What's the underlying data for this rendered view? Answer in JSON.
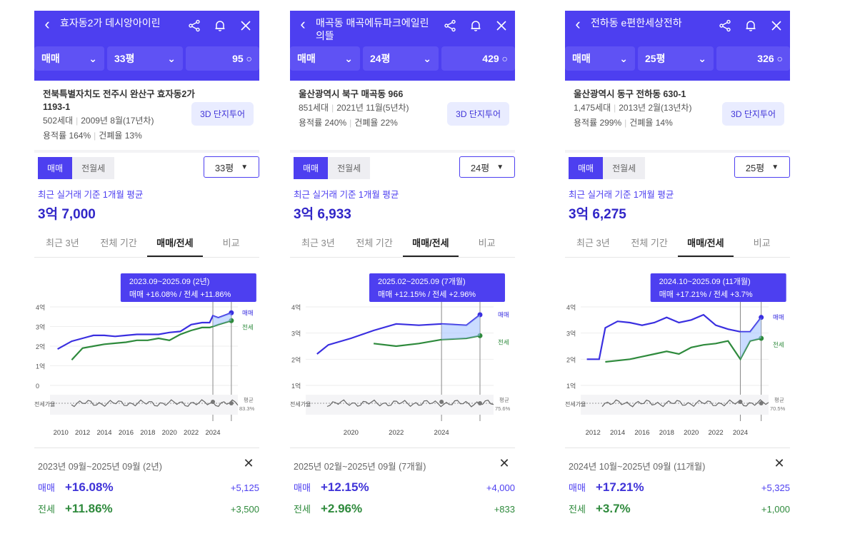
{
  "panels": [
    {
      "title": "효자동2가 데시앙아이린",
      "deal_type": "매매",
      "size": "33평",
      "count": "95",
      "address": "전북특별자치도 전주시 완산구 효자동2가 1193-1",
      "households": "502세대",
      "built": "2009년 8월(17년차)",
      "far": "용적률 164%",
      "bcr": "건폐율 13%",
      "tour_label": "3D 단지투어",
      "seg": [
        "매매",
        "전월세"
      ],
      "size_select": "33평",
      "avg_label": "최근 실거래 기준 1개월 평균",
      "avg_value": "3억 7,000",
      "tabs": [
        "최근 3년",
        "전체 기간",
        "매매/전세",
        "비교"
      ],
      "period_tip": "2023.09~2025.09 (2년)",
      "change_tip": "매매 +16.08%  /  전세 +11.86%",
      "legend_sale": "매매",
      "legend_lease": "전세",
      "ratio_label": "전세가율",
      "ratio_avg_label": "평균",
      "ratio_avg": "83.3%",
      "yticks": [
        "4억",
        "3억",
        "2억",
        "1억",
        "0"
      ],
      "xticks": [
        "2010",
        "2012",
        "2014",
        "2016",
        "2018",
        "2020",
        "2022",
        "2024"
      ],
      "summary_title": "2023년 09월~2025년 09월 (2년)",
      "sale_label": "매매",
      "sale_pct": "+16.08%",
      "sale_amt": "+5,125",
      "lease_label": "전세",
      "lease_pct": "+11.86%",
      "lease_amt": "+3,500"
    },
    {
      "title": "매곡동 매곡에듀파크에일린의뜰",
      "deal_type": "매매",
      "size": "24평",
      "count": "429",
      "address": "울산광역시 북구 매곡동 966",
      "households": "851세대",
      "built": "2021년 11월(5년차)",
      "far": "용적률 240%",
      "bcr": "건폐율 22%",
      "tour_label": "3D 단지투어",
      "seg": [
        "매매",
        "전월세"
      ],
      "size_select": "24평",
      "avg_label": "최근 실거래 기준 1개월 평균",
      "avg_value": "3억 6,933",
      "tabs": [
        "최근 3년",
        "전체 기간",
        "매매/전세",
        "비교"
      ],
      "period_tip": "2025.02~2025.09 (7개월)",
      "change_tip": "매매 +12.15%  /  전세 +2.96%",
      "legend_sale": "매매",
      "legend_lease": "전세",
      "ratio_label": "전세가율",
      "ratio_avg_label": "평균",
      "ratio_avg": "75.6%",
      "yticks": [
        "4억",
        "3억",
        "2억",
        "1억"
      ],
      "xticks": [
        "2020",
        "2022",
        "2024"
      ],
      "summary_title": "2025년 02월~2025년 09월 (7개월)",
      "sale_label": "매매",
      "sale_pct": "+12.15%",
      "sale_amt": "+4,000",
      "lease_label": "전세",
      "lease_pct": "+2.96%",
      "lease_amt": "+833"
    },
    {
      "title": "전하동 e편한세상전하",
      "deal_type": "매매",
      "size": "25평",
      "count": "326",
      "address": "울산광역시 동구 전하동 630-1",
      "households": "1,475세대",
      "built": "2013년 2월(13년차)",
      "far": "용적률 299%",
      "bcr": "건폐율 14%",
      "tour_label": "3D 단지투어",
      "seg": [
        "매매",
        "전월세"
      ],
      "size_select": "25평",
      "avg_label": "최근 실거래 기준 1개월 평균",
      "avg_value": "3억 6,275",
      "tabs": [
        "최근 3년",
        "전체 기간",
        "매매/전세",
        "비교"
      ],
      "period_tip": "2024.10~2025.09 (11개월)",
      "change_tip": "매매 +17.21%  /  전세 +3.7%",
      "legend_sale": "매매",
      "legend_lease": "전세",
      "ratio_label": "전세가율",
      "ratio_avg_label": "평균",
      "ratio_avg": "70.5%",
      "yticks": [
        "4억",
        "3억",
        "2억",
        "1억"
      ],
      "xticks": [
        "2012",
        "2014",
        "2016",
        "2018",
        "2020",
        "2022",
        "2024"
      ],
      "summary_title": "2024년 10월~2025년 09월 (11개월)",
      "sale_label": "매매",
      "sale_pct": "+17.21%",
      "sale_amt": "+5,325",
      "lease_label": "전세",
      "lease_pct": "+3.7%",
      "lease_amt": "+1,000"
    }
  ],
  "colors": {
    "accent": "#4d3ff0",
    "sale": "#3a2fe0",
    "lease": "#2e8a3c",
    "ratio": "#666666"
  },
  "chart_data": [
    {
      "type": "line",
      "x": [
        2009.7,
        2011,
        2012,
        2013,
        2014,
        2015,
        2016,
        2017,
        2018,
        2019,
        2020,
        2021,
        2022,
        2023,
        2023.7,
        2024,
        2024.5,
        2025.7
      ],
      "series": [
        {
          "name": "매매",
          "values": [
            1.85,
            2.25,
            2.4,
            2.55,
            2.55,
            2.5,
            2.55,
            2.6,
            2.6,
            2.6,
            2.7,
            2.75,
            3.1,
            3.2,
            3.2,
            3.55,
            3.45,
            3.7
          ]
        },
        {
          "name": "전세",
          "values": [
            null,
            1.3,
            1.9,
            2.0,
            2.1,
            2.15,
            2.2,
            2.3,
            2.3,
            2.4,
            2.3,
            2.6,
            2.8,
            2.95,
            2.95,
            3.0,
            3.1,
            3.3
          ]
        }
      ],
      "ylim": [
        0,
        4
      ]
    },
    {
      "type": "line",
      "x": [
        2018.5,
        2019,
        2020,
        2021,
        2022,
        2023,
        2024,
        2025.1,
        2025.7
      ],
      "series": [
        {
          "name": "매매",
          "values": [
            2.2,
            2.55,
            2.8,
            3.1,
            3.35,
            3.3,
            3.35,
            3.3,
            3.7
          ]
        },
        {
          "name": "전세",
          "values": [
            null,
            null,
            null,
            2.6,
            2.5,
            2.6,
            2.75,
            2.8,
            2.9
          ]
        }
      ],
      "ylim": [
        1,
        4
      ]
    },
    {
      "type": "line",
      "x": [
        2011.5,
        2012.5,
        2013,
        2014,
        2015,
        2016,
        2017,
        2018,
        2019,
        2020,
        2021,
        2022,
        2023,
        2024,
        2024.8,
        2025.7
      ],
      "series": [
        {
          "name": "매매",
          "values": [
            2.0,
            2.0,
            3.2,
            3.45,
            3.4,
            3.3,
            3.4,
            3.6,
            3.4,
            3.5,
            3.7,
            3.3,
            3.15,
            3.05,
            3.05,
            3.6
          ]
        },
        {
          "name": "전세",
          "values": [
            null,
            null,
            1.9,
            1.95,
            2.0,
            2.1,
            2.2,
            2.3,
            2.2,
            2.45,
            2.55,
            2.6,
            2.7,
            2.0,
            2.7,
            2.8
          ]
        }
      ],
      "ylim": [
        1,
        4
      ]
    }
  ]
}
